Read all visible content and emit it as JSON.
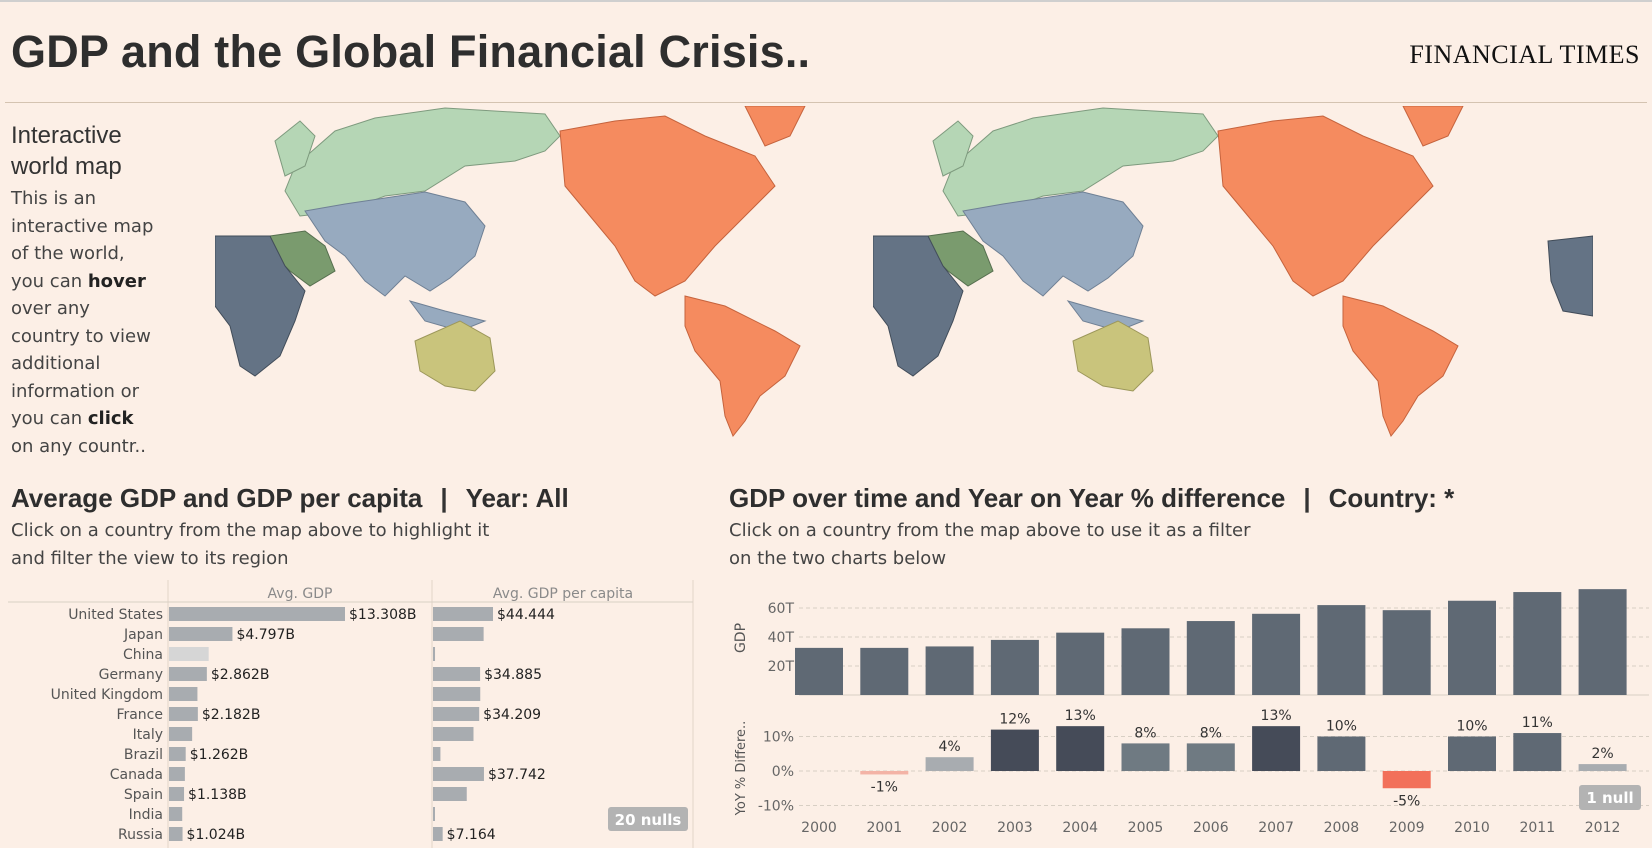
{
  "header": {
    "title": "GDP and the Global Financial Crisis..",
    "brand": "FINANCIAL TIMES"
  },
  "intro": {
    "heading_line1": "Interactive",
    "heading_line2": "world map",
    "body_parts": [
      "This is an interactive map of the world, you can ",
      "hover",
      " over any country to view additional information or you can ",
      "click",
      " on any countr.."
    ]
  },
  "colors": {
    "background": "#fcefe6",
    "americas": "#f58b5f",
    "europe_russia": "#b5d6b5",
    "asia": "#97aabf",
    "africa": "#647385",
    "middle_east": "#7a9b6e",
    "oceania": "#c9c47c",
    "bar_dark": "#5f6974",
    "bar_light": "#a8acb0",
    "negative": "#f2705a"
  },
  "left_panel": {
    "title": "Average GDP and GDP per capita",
    "year_label": "Year: All",
    "subtitle_line1": "Click on a country from the map above to highlight it",
    "subtitle_line2": "and filter the view to its region",
    "col1_header": "Avg. GDP",
    "col2_header": "Avg. GDP per capita",
    "nulls_badge": "20 nulls"
  },
  "right_panel": {
    "title": "GDP over time and Year on Year % difference",
    "country_label": "Country: *",
    "subtitle_line1": "Click on a country from the map above to use it as a filter",
    "subtitle_line2": "on the two charts below",
    "null_badge": "1 null"
  },
  "chart_data": [
    {
      "type": "bar",
      "title": "",
      "categories": [
        "United States",
        "Japan",
        "China",
        "Germany",
        "United Kingdom",
        "France",
        "Italy",
        "Brazil",
        "Canada",
        "Spain",
        "India",
        "Russia"
      ],
      "series": [
        {
          "name": "Avg. GDP",
          "values": [
            13.308,
            4.797,
            3.0,
            2.862,
            2.15,
            2.182,
            1.75,
            1.262,
            1.2,
            1.138,
            1.0,
            1.024
          ],
          "labels": [
            "$13.308B",
            "$4.797B",
            "",
            "$2.862B",
            "",
            "$2.182B",
            "",
            "$1.262B",
            "",
            "$1.138B",
            "",
            "$1.024B"
          ]
        },
        {
          "name": "Avg. GDP per capita",
          "values": [
            44.444,
            37.5,
            1.5,
            34.885,
            35.0,
            34.209,
            30.0,
            5.5,
            37.742,
            25.0,
            1.0,
            7.164
          ],
          "labels": [
            "$44.444",
            "",
            "",
            "$34.885",
            "",
            "$34.209",
            "",
            "",
            "$37.742",
            "",
            "",
            "$7.164"
          ]
        }
      ]
    },
    {
      "type": "bar",
      "title": "",
      "ylabel": "GDP",
      "x": [
        "2000",
        "2001",
        "2002",
        "2003",
        "2004",
        "2005",
        "2006",
        "2007",
        "2008",
        "2009",
        "2010",
        "2011",
        "2012"
      ],
      "values": [
        32.5,
        32.5,
        33.5,
        38,
        43,
        46,
        51,
        56,
        62,
        58.5,
        65,
        71,
        73
      ],
      "ylim": [
        0,
        75
      ],
      "yticks": [
        "20T",
        "40T",
        "60T"
      ]
    },
    {
      "type": "bar",
      "title": "",
      "ylabel": "YoY % Differe..",
      "x": [
        "2000",
        "2001",
        "2002",
        "2003",
        "2004",
        "2005",
        "2006",
        "2007",
        "2008",
        "2009",
        "2010",
        "2011",
        "2012"
      ],
      "values": [
        null,
        -1,
        4,
        12,
        13,
        8,
        8,
        13,
        10,
        -5,
        10,
        11,
        2
      ],
      "labels": [
        "",
        "-1%",
        "4%",
        "12%",
        "13%",
        "8%",
        "8%",
        "13%",
        "10%",
        "-5%",
        "10%",
        "11%",
        "2%"
      ],
      "ylim": [
        -10,
        15
      ],
      "yticks": [
        "10%",
        "0%",
        "-10%"
      ]
    }
  ]
}
